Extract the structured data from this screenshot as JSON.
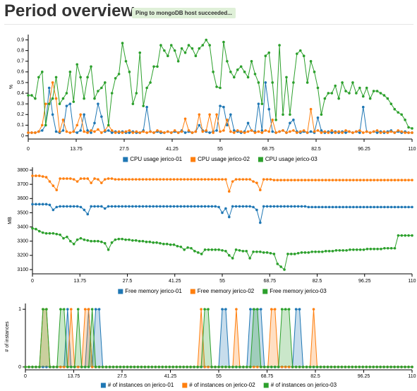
{
  "header": {
    "title": "Period overview",
    "badge": "Ping to mongoDB host succeeded..."
  },
  "chart_data": [
    {
      "type": "line",
      "ylabel": "%",
      "xlim": [
        0,
        110
      ],
      "xticks": [
        0,
        13.75,
        27.5,
        41.25,
        55,
        68.75,
        82.5,
        96.25,
        110
      ],
      "ylim": [
        -0.03,
        0.95
      ],
      "yticks": [
        0,
        0.1,
        0.2,
        0.3,
        0.4,
        0.5,
        0.6,
        0.7,
        0.8,
        0.9
      ],
      "series": [
        {
          "name": "CPU usage jerico-01",
          "color": "#1f77b4",
          "values": [
            0.03,
            0.03,
            0.03,
            0.04,
            0.05,
            0.1,
            0.45,
            0.2,
            0.04,
            0.03,
            0.05,
            0.28,
            0.3,
            0.04,
            0.03,
            0.05,
            0.2,
            0.05,
            0.03,
            0.12,
            0.3,
            0.18,
            0.04,
            0.05,
            0.03,
            0.04,
            0.03,
            0.04,
            0.03,
            0.03,
            0.04,
            0.03,
            0.03,
            0.05,
            0.27,
            0.04,
            0.03,
            0.04,
            0.03,
            0.03,
            0.04,
            0.03,
            0.04,
            0.03,
            0.05,
            0.03,
            0.04,
            0.03,
            0.04,
            0.1,
            0.05,
            0.04,
            0.03,
            0.04,
            0.05,
            0.28,
            0.27,
            0.1,
            0.2,
            0.05,
            0.04,
            0.03,
            0.04,
            0.12,
            0.05,
            0.04,
            0.3,
            0.05,
            0.5,
            0.25,
            0.04,
            0.03,
            0.04,
            0.05,
            0.03,
            0.12,
            0.15,
            0.04,
            0.03,
            0.04,
            0.03,
            0.04,
            0.03,
            0.17,
            0.05,
            0.03,
            0.04,
            0.03,
            0.04,
            0.03,
            0.04,
            0.03,
            0.04,
            0.03,
            0.04,
            0.03,
            0.27,
            0.04,
            0.03,
            0.04,
            0.03,
            0.04,
            0.03,
            0.04,
            0.05,
            0.03,
            0.04,
            0.03,
            0.04,
            0.03,
            0.03
          ]
        },
        {
          "name": "CPU usage jerico-02",
          "color": "#ff7f0e",
          "values": [
            0.03,
            0.03,
            0.03,
            0.04,
            0.1,
            0.3,
            0.3,
            0.5,
            0.35,
            0.04,
            0.15,
            0.04,
            0.03,
            0.04,
            0.1,
            0.2,
            0.04,
            0.03,
            0.05,
            0.04,
            0.06,
            0.03,
            0.05,
            0.1,
            0.05,
            0.03,
            0.04,
            0.03,
            0.04,
            0.05,
            0.03,
            0.04,
            0.03,
            0.04,
            0.03,
            0.04,
            0.03,
            0.05,
            0.04,
            0.03,
            0.04,
            0.03,
            0.05,
            0.03,
            0.04,
            0.16,
            0.05,
            0.03,
            0.04,
            0.2,
            0.04,
            0.05,
            0.2,
            0.03,
            0.2,
            0.04,
            0.05,
            0.15,
            0.04,
            0.03,
            0.05,
            0.04,
            0.03,
            0.04,
            0.05,
            0.03,
            0.04,
            0.03,
            0.05,
            0.04,
            0.15,
            0.03,
            0.04,
            0.05,
            0.03,
            0.04,
            0.05,
            0.03,
            0.04,
            0.05,
            0.03,
            0.25,
            0.04,
            0.05,
            0.03,
            0.04,
            0.03,
            0.05,
            0.03,
            0.04,
            0.03,
            0.05,
            0.04,
            0.03,
            0.04,
            0.05,
            0.03,
            0.04,
            0.03,
            0.04,
            0.05,
            0.03,
            0.04,
            0.03,
            0.04,
            0.03,
            0.05,
            0.04,
            0.03,
            0.03,
            0.03
          ]
        },
        {
          "name": "CPU usage jerico-03",
          "color": "#2ca02c",
          "values": [
            0.38,
            0.38,
            0.35,
            0.55,
            0.6,
            0.1,
            0.3,
            0.35,
            0.55,
            0.3,
            0.35,
            0.4,
            0.6,
            0.32,
            0.67,
            0.55,
            0.35,
            0.55,
            0.65,
            0.35,
            0.42,
            0.45,
            0.5,
            0.1,
            0.4,
            0.54,
            0.58,
            0.87,
            0.7,
            0.6,
            0.3,
            0.4,
            0.78,
            0.28,
            0.45,
            0.5,
            0.65,
            0.65,
            0.85,
            0.8,
            0.75,
            0.85,
            0.8,
            0.7,
            0.82,
            0.78,
            0.85,
            0.82,
            0.75,
            0.82,
            0.85,
            0.9,
            0.85,
            0.6,
            0.46,
            0.45,
            0.88,
            0.7,
            0.6,
            0.55,
            0.62,
            0.65,
            0.6,
            0.55,
            0.7,
            0.58,
            0.5,
            0.3,
            0.75,
            0.78,
            0.5,
            0.15,
            0.85,
            0.2,
            0.55,
            0.2,
            0.5,
            0.77,
            0.8,
            0.75,
            0.5,
            0.7,
            0.6,
            0.45,
            0.2,
            0.35,
            0.4,
            0.4,
            0.47,
            0.35,
            0.5,
            0.42,
            0.4,
            0.5,
            0.4,
            0.45,
            0.37,
            0.45,
            0.35,
            0.42,
            0.42,
            0.4,
            0.38,
            0.35,
            0.3,
            0.25,
            0.22,
            0.2,
            0.15,
            0.08,
            0.07
          ]
        }
      ]
    },
    {
      "type": "line",
      "ylabel": "MB",
      "xlim": [
        0,
        110
      ],
      "xticks": [
        0,
        13.75,
        27.5,
        41.25,
        55,
        68.75,
        82.5,
        96.25,
        110
      ],
      "ylim": [
        3070,
        3820
      ],
      "yticks": [
        3100,
        3200,
        3300,
        3400,
        3500,
        3600,
        3700,
        3800
      ],
      "series": [
        {
          "name": "Free memory jerico-01",
          "color": "#1f77b4",
          "values": [
            3560,
            3560,
            3560,
            3560,
            3560,
            3555,
            3520,
            3540,
            3545,
            3545,
            3545,
            3545,
            3545,
            3545,
            3540,
            3520,
            3490,
            3545,
            3545,
            3545,
            3545,
            3530,
            3545,
            3545,
            3545,
            3545,
            3545,
            3545,
            3545,
            3545,
            3545,
            3545,
            3545,
            3545,
            3545,
            3545,
            3545,
            3545,
            3545,
            3545,
            3545,
            3545,
            3545,
            3545,
            3545,
            3545,
            3545,
            3545,
            3545,
            3545,
            3545,
            3545,
            3545,
            3545,
            3540,
            3500,
            3530,
            3470,
            3545,
            3545,
            3545,
            3545,
            3545,
            3545,
            3540,
            3520,
            3430,
            3545,
            3545,
            3545,
            3545,
            3545,
            3545,
            3545,
            3545,
            3545,
            3545,
            3545,
            3545,
            3545,
            3540,
            3540,
            3540,
            3540,
            3540,
            3540,
            3540,
            3540,
            3540,
            3540,
            3540,
            3540,
            3540,
            3540,
            3540,
            3540,
            3540,
            3540,
            3540,
            3540,
            3540,
            3540,
            3540,
            3540,
            3540,
            3540,
            3540,
            3540,
            3540,
            3540,
            3540
          ]
        },
        {
          "name": "Free memory jerico-02",
          "color": "#ff7f0e",
          "values": [
            3760,
            3760,
            3760,
            3755,
            3750,
            3720,
            3690,
            3660,
            3740,
            3740,
            3740,
            3740,
            3735,
            3720,
            3740,
            3740,
            3740,
            3710,
            3740,
            3735,
            3710,
            3735,
            3740,
            3740,
            3735,
            3735,
            3735,
            3735,
            3735,
            3735,
            3735,
            3735,
            3735,
            3735,
            3735,
            3735,
            3735,
            3735,
            3735,
            3735,
            3735,
            3735,
            3735,
            3735,
            3735,
            3735,
            3735,
            3735,
            3735,
            3735,
            3735,
            3735,
            3735,
            3735,
            3735,
            3735,
            3735,
            3650,
            3720,
            3735,
            3735,
            3735,
            3735,
            3735,
            3720,
            3710,
            3660,
            3735,
            3735,
            3735,
            3730,
            3730,
            3730,
            3730,
            3730,
            3730,
            3730,
            3730,
            3730,
            3730,
            3730,
            3730,
            3730,
            3730,
            3730,
            3730,
            3730,
            3730,
            3730,
            3730,
            3730,
            3730,
            3730,
            3730,
            3730,
            3730,
            3730,
            3730,
            3730,
            3730,
            3730,
            3730,
            3730,
            3730,
            3730,
            3730,
            3730,
            3730,
            3730,
            3730,
            3730
          ]
        },
        {
          "name": "Free memory jerico-03",
          "color": "#2ca02c",
          "values": [
            3390,
            3385,
            3370,
            3360,
            3355,
            3355,
            3355,
            3350,
            3345,
            3320,
            3330,
            3300,
            3280,
            3310,
            3320,
            3310,
            3305,
            3300,
            3300,
            3300,
            3295,
            3285,
            3240,
            3290,
            3310,
            3315,
            3315,
            3310,
            3310,
            3305,
            3305,
            3300,
            3300,
            3295,
            3295,
            3290,
            3290,
            3285,
            3280,
            3280,
            3275,
            3275,
            3265,
            3260,
            3240,
            3255,
            3250,
            3230,
            3220,
            3210,
            3240,
            3240,
            3240,
            3240,
            3240,
            3235,
            3230,
            3200,
            3180,
            3240,
            3235,
            3230,
            3230,
            3180,
            3225,
            3225,
            3225,
            3220,
            3220,
            3215,
            3210,
            3140,
            3120,
            3100,
            3210,
            3210,
            3210,
            3215,
            3220,
            3220,
            3220,
            3225,
            3225,
            3225,
            3225,
            3230,
            3230,
            3230,
            3235,
            3235,
            3235,
            3235,
            3240,
            3240,
            3240,
            3240,
            3240,
            3245,
            3245,
            3245,
            3245,
            3245,
            3250,
            3250,
            3250,
            3250,
            3340,
            3340,
            3340,
            3340,
            3340
          ]
        }
      ]
    },
    {
      "type": "area",
      "ylabel": "# of instances",
      "xlim": [
        0,
        110
      ],
      "xticks": [
        0,
        13.75,
        27.5,
        41.25,
        55,
        68.75,
        82.5,
        96.25,
        110
      ],
      "ylim": [
        -0.05,
        1.1
      ],
      "yticks": [
        0,
        1
      ],
      "series": [
        {
          "name": "# of instances on jerico-01",
          "color": "#1f77b4",
          "values": [
            0,
            0,
            0,
            0,
            0,
            0,
            0,
            0,
            0,
            0,
            0,
            0,
            1,
            0,
            0,
            0,
            0,
            0,
            1,
            0,
            1,
            1,
            0,
            0,
            0,
            0,
            0,
            0,
            0,
            0,
            0,
            0,
            0,
            0,
            0,
            0,
            0,
            0,
            0,
            0,
            0,
            0,
            0,
            0,
            0,
            0,
            0,
            0,
            0,
            0,
            0,
            0,
            0,
            0,
            0,
            0,
            1,
            1,
            0,
            0,
            0,
            0,
            0,
            0,
            1,
            1,
            1,
            1,
            0,
            0,
            0,
            0,
            0,
            0,
            0,
            0,
            0,
            1,
            1,
            0,
            0,
            0,
            0,
            0,
            0,
            0,
            0,
            0,
            0,
            0,
            0,
            0,
            0,
            0,
            0,
            0,
            0,
            0,
            0,
            0,
            0,
            0,
            0,
            0,
            0,
            0,
            0,
            0,
            0,
            0,
            0
          ]
        },
        {
          "name": "# of instances on jerico-02",
          "color": "#ff7f0e",
          "values": [
            0,
            0,
            0,
            0,
            0,
            1,
            1,
            0,
            0,
            0,
            0,
            0,
            0,
            1,
            0,
            0,
            0,
            1,
            1,
            0,
            0,
            0,
            0,
            0,
            0,
            0,
            0,
            0,
            0,
            0,
            0,
            0,
            0,
            0,
            0,
            0,
            0,
            0,
            0,
            0,
            0,
            0,
            0,
            0,
            0,
            0,
            0,
            0,
            0,
            0,
            1,
            0,
            0,
            0,
            0,
            0,
            0,
            0,
            0,
            0,
            1,
            0,
            0,
            0,
            0,
            0,
            0,
            0,
            0,
            0,
            1,
            1,
            0,
            0,
            0,
            0,
            0,
            0,
            0,
            0,
            0,
            0,
            1,
            0,
            0,
            0,
            0,
            0,
            0,
            0,
            0,
            0,
            0,
            0,
            0,
            0,
            0,
            0,
            0,
            0,
            0,
            0,
            0,
            0,
            0,
            0,
            0,
            0,
            0,
            0,
            0
          ]
        },
        {
          "name": "# of instances on jerico-03",
          "color": "#2ca02c",
          "values": [
            0,
            0,
            0,
            0,
            0,
            1,
            1,
            0,
            0,
            0,
            1,
            1,
            0,
            0,
            0,
            1,
            0,
            0,
            0,
            1,
            0,
            0,
            0,
            0,
            0,
            0,
            0,
            0,
            0,
            0,
            0,
            0,
            0,
            0,
            0,
            0,
            0,
            0,
            0,
            0,
            0,
            0,
            0,
            0,
            0,
            0,
            0,
            0,
            0,
            0,
            0,
            1,
            1,
            0,
            0,
            0,
            0,
            0,
            0,
            0,
            0,
            0,
            0,
            0,
            0,
            1,
            1,
            0,
            0,
            0,
            0,
            0,
            0,
            1,
            1,
            1,
            0,
            0,
            0,
            0,
            0,
            0,
            0,
            0,
            0,
            0,
            0,
            0,
            0,
            0,
            0,
            0,
            0,
            0,
            0,
            0,
            0,
            0,
            0,
            0,
            0,
            0,
            0,
            0,
            0,
            0,
            0,
            0,
            0,
            0,
            0
          ]
        }
      ]
    }
  ]
}
